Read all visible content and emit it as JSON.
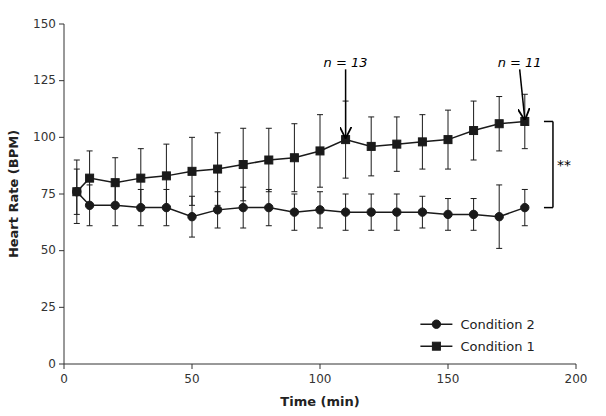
{
  "chart_data": {
    "type": "line",
    "xlabel": "Time (min)",
    "ylabel": "Heart Rate (BPM)",
    "x": [
      5,
      10,
      20,
      30,
      40,
      50,
      60,
      70,
      80,
      90,
      100,
      110,
      120,
      130,
      140,
      150,
      160,
      170,
      180
    ],
    "series": [
      {
        "name": "Condition 1",
        "color": "#1a1a1a",
        "marker": "square",
        "line_style": "solid",
        "values": [
          76,
          82,
          80,
          82,
          83,
          85,
          86,
          88,
          90,
          91,
          94,
          99,
          96,
          97,
          98,
          99,
          103,
          106,
          107
        ],
        "errors": [
          14,
          12,
          11,
          13,
          14,
          15,
          16,
          16,
          14,
          15,
          16,
          17,
          13,
          12,
          12,
          13,
          13,
          12,
          12
        ]
      },
      {
        "name": "Condition 2",
        "color": "#1a1a1a",
        "marker": "circle",
        "line_style": "solid",
        "values": [
          76,
          70,
          70,
          69,
          69,
          65,
          68,
          69,
          69,
          67,
          68,
          67,
          67,
          67,
          67,
          66,
          66,
          65,
          69
        ],
        "errors": [
          10,
          9,
          9,
          8,
          8,
          9,
          8,
          9,
          8,
          8,
          8,
          8,
          8,
          8,
          7,
          7,
          7,
          14,
          8
        ]
      }
    ],
    "xlim": [
      0,
      200
    ],
    "ylim": [
      0,
      150
    ],
    "xticks": [
      0,
      50,
      100,
      150,
      200
    ],
    "yticks": [
      0,
      25,
      50,
      75,
      100,
      125,
      150
    ],
    "grid": false,
    "legend": "lower right",
    "annotations": [
      {
        "text": "n = 13",
        "x": 110,
        "y": 100,
        "text_x": 110,
        "text_y": 130
      },
      {
        "text": "n = 11",
        "x": 180,
        "y": 108,
        "text_x": 178,
        "text_y": 130
      }
    ],
    "significance": {
      "text": "**",
      "x": 191,
      "y1": 107,
      "y2": 69
    }
  }
}
